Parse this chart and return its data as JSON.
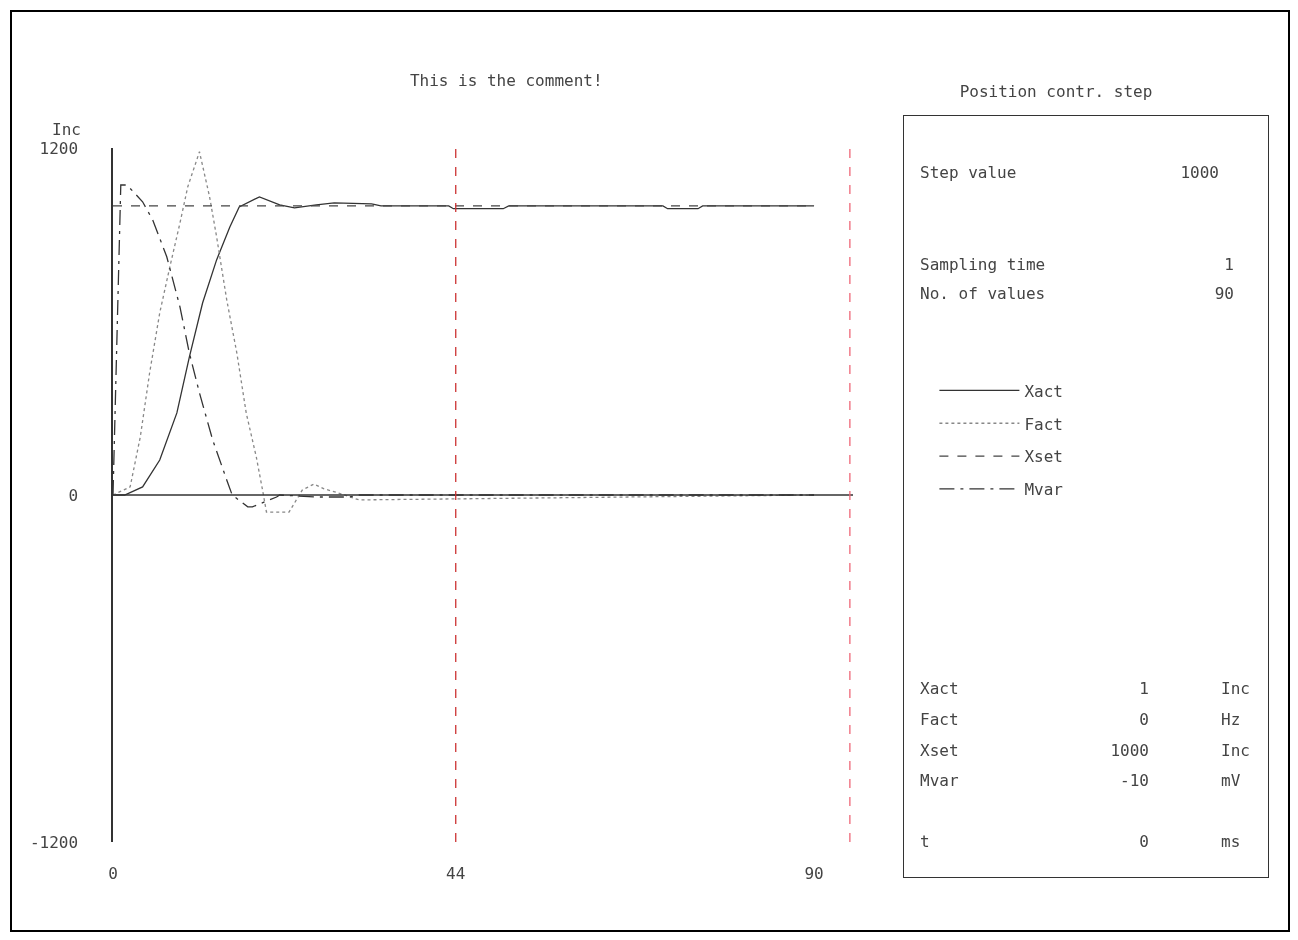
{
  "chart_data": [
    {
      "type": "line",
      "title": "This is the comment!",
      "ylabel": "Inc",
      "xlim": [
        0,
        95
      ],
      "xticks": [
        0,
        44,
        90
      ],
      "ylim": [
        -1200,
        1200
      ],
      "yticks": [
        -1200,
        0,
        1200
      ],
      "grid": false,
      "legend": "right",
      "marker": "none",
      "series": [
        {
          "name": "Xact",
          "color": "#333333",
          "line_style": "solid",
          "x": [
            0,
            1.5,
            3.8,
            6,
            8.2,
            9.8,
            11.5,
            13.3,
            15,
            16.2,
            18.8,
            21.4,
            23.3,
            26.1,
            28.4,
            33.2,
            34.4,
            43.1,
            43.7,
            50.1,
            50.8,
            70.6,
            71.2,
            75.1,
            75.7,
            90
          ],
          "values": [
            0,
            0,
            28,
            121,
            284,
            477,
            664,
            813,
            927,
            996,
            1031,
            1003,
            993,
            1003,
            1010,
            1007,
            1000,
            1000,
            990,
            990,
            1000,
            1000,
            990,
            990,
            1000,
            1000
          ]
        },
        {
          "name": "Fact",
          "color": "#888888",
          "line_style": "dotted",
          "x": [
            0,
            2.2,
            3.5,
            4.7,
            6,
            7.3,
            8.6,
            9.6,
            11.1,
            12.4,
            13.3,
            14.6,
            15.9,
            17.1,
            18.4,
            19.2,
            19.7,
            22.6,
            24.3,
            25.8,
            27.1,
            28.6,
            31.6,
            90
          ],
          "values": [
            0,
            28,
            200,
            422,
            630,
            789,
            941,
            1066,
            1187,
            1031,
            893,
            675,
            491,
            284,
            131,
            17,
            -59,
            -59,
            17,
            38,
            21,
            10,
            -17,
            0
          ]
        },
        {
          "name": "Xset",
          "color": "#444444",
          "line_style": "dashed",
          "x": [
            0,
            90
          ],
          "values": [
            1000,
            1000
          ]
        },
        {
          "name": "Mvar",
          "color": "#333333",
          "line_style": "dashdot",
          "x": [
            0,
            1,
            1.8,
            3.8,
            5.1,
            6.9,
            8.6,
            9.8,
            11.1,
            12.8,
            14.6,
            15.3,
            17.3,
            17.9,
            21,
            21.4,
            26.2,
            30.3,
            31.6,
            90
          ],
          "values": [
            0,
            1072,
            1072,
            1014,
            951,
            824,
            650,
            491,
            353,
            190,
            52,
            0,
            -41,
            -41,
            -7,
            0,
            -7,
            -7,
            0,
            0
          ]
        }
      ],
      "ref_lines": [
        {
          "axis": "y",
          "value": 0,
          "color": "#333333",
          "line_style": "solid"
        },
        {
          "axis": "x",
          "value": 44,
          "color": "#cc3333",
          "line_style": "dashed"
        },
        {
          "axis": "x",
          "value": 94.6,
          "color": "#ee6677",
          "line_style": "dashed"
        }
      ]
    },
    {
      "type": "other",
      "title": "Position contr. step",
      "annotations": [
        "Step value",
        "1000",
        "Sampling time",
        "1",
        "No. of values",
        "90",
        "Xact",
        "1",
        "Inc",
        "Fact",
        "0",
        "Hz",
        "Xset",
        "1000",
        "Inc",
        "Mvar",
        "-10",
        "mV",
        "t",
        "0",
        "ms"
      ]
    }
  ]
}
